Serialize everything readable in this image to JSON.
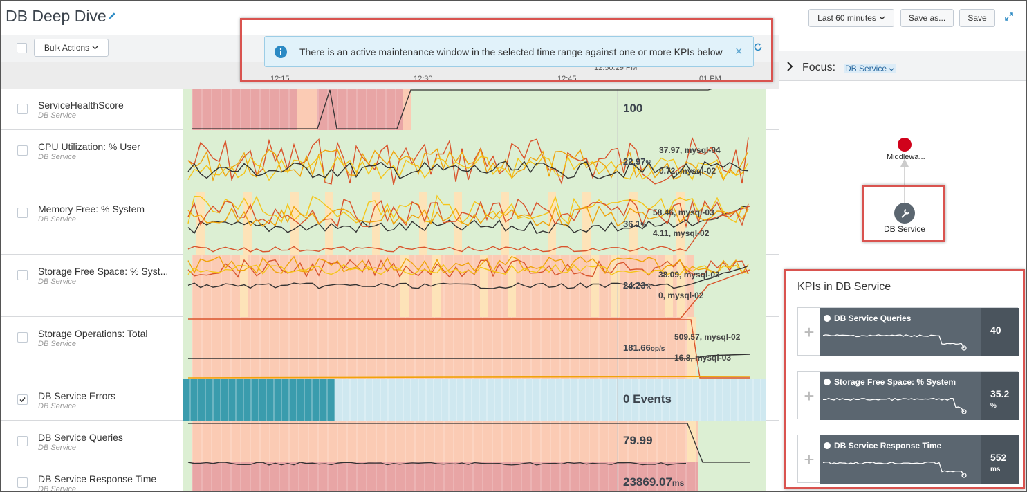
{
  "header": {
    "title": "DB Deep Dive",
    "time_range": "Last 60 minutes",
    "save_as": "Save as...",
    "save": "Save"
  },
  "toolbar": {
    "bulk_actions": "Bulk Actions"
  },
  "banner": {
    "message": "There is an active maintenance window in the selected time range against one or more KPIs below",
    "close": "×"
  },
  "time_axis": {
    "ticks": [
      "12:15",
      "12:30",
      "12:45",
      "01 PM"
    ],
    "cursor_time": "12:50:29 PM"
  },
  "lanes": [
    {
      "name": "ServiceHealthScore",
      "service": "DB Service",
      "value": "100",
      "unit": "",
      "checked": false
    },
    {
      "name": "CPU Utilization: % User",
      "service": "DB Service",
      "value": "22.97",
      "unit": "%",
      "checked": false,
      "annotations": [
        "37.97, mysql-04",
        "0.72, mysql-02"
      ]
    },
    {
      "name": "Memory Free: % System",
      "service": "DB Service",
      "value": "36.1",
      "unit": "%",
      "checked": false,
      "annotations": [
        "58.46, mysql-03",
        "4.11, mysql-02"
      ]
    },
    {
      "name": "Storage Free Space: % Syst...",
      "service": "DB Service",
      "value": "24.23",
      "unit": "%",
      "checked": false,
      "annotations": [
        "38.09, mysql-03",
        "0, mysql-02"
      ]
    },
    {
      "name": "Storage Operations: Total",
      "service": "DB Service",
      "value": "181.66",
      "unit": "op/s",
      "checked": false,
      "annotations": [
        "509.57, mysql-02",
        "16.8, mysql-03"
      ]
    },
    {
      "name": "DB Service Errors",
      "service": "DB Service",
      "value": "0 Events",
      "unit": "",
      "checked": true
    },
    {
      "name": "DB Service Queries",
      "service": "DB Service",
      "value": "79.99",
      "unit": "",
      "checked": false
    },
    {
      "name": "DB Service Response Time",
      "service": "DB Service",
      "value": "23869.07",
      "unit": "ms",
      "checked": false
    }
  ],
  "focus": {
    "label": "Focus:",
    "selected": "DB Service",
    "nodes": {
      "parent": "Middlewa...",
      "current": "DB Service"
    }
  },
  "kpi_panel": {
    "title": "KPIs in DB Service",
    "cards": [
      {
        "name": "DB Service Queries",
        "value": "40",
        "unit": ""
      },
      {
        "name": "Storage Free Space: % System",
        "value": "35.2",
        "unit": "%"
      },
      {
        "name": "DB Service Response Time",
        "value": "552",
        "unit": "ms"
      }
    ]
  },
  "colors": {
    "critical": "#e8a5a5",
    "high": "#fbcbb4",
    "medium": "#fde3b8",
    "normal": "#dcefd3",
    "accent": "#2b8ac4",
    "events_dark": "#3a9cad",
    "events_light": "#cfe8f0"
  }
}
